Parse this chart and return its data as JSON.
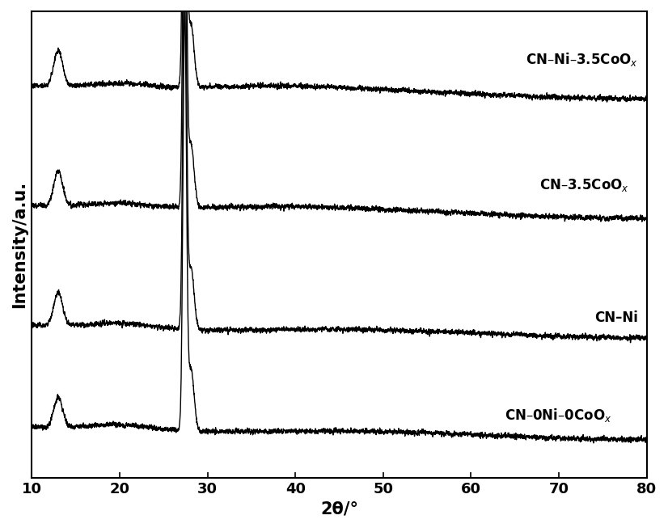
{
  "xlim": [
    10,
    80
  ],
  "xlabel": "2θ/°",
  "ylabel": "Intensity/a.u.",
  "xlabel_fontsize": 15,
  "ylabel_fontsize": 15,
  "tick_fontsize": 13,
  "xticks": [
    10,
    20,
    30,
    40,
    50,
    60,
    70,
    80
  ],
  "background_color": "#ffffff",
  "line_color": "#000000",
  "line_width": 1.0,
  "label_texts": [
    "CN–Ni–3.5CoO$_x$",
    "CN–3.5CoO$_x$",
    "CN–Ni",
    "CN–0Ni–0CoO$_x$"
  ],
  "offsets": [
    0.62,
    0.42,
    0.22,
    0.05
  ],
  "noise_seed": 42,
  "npts": 4000
}
